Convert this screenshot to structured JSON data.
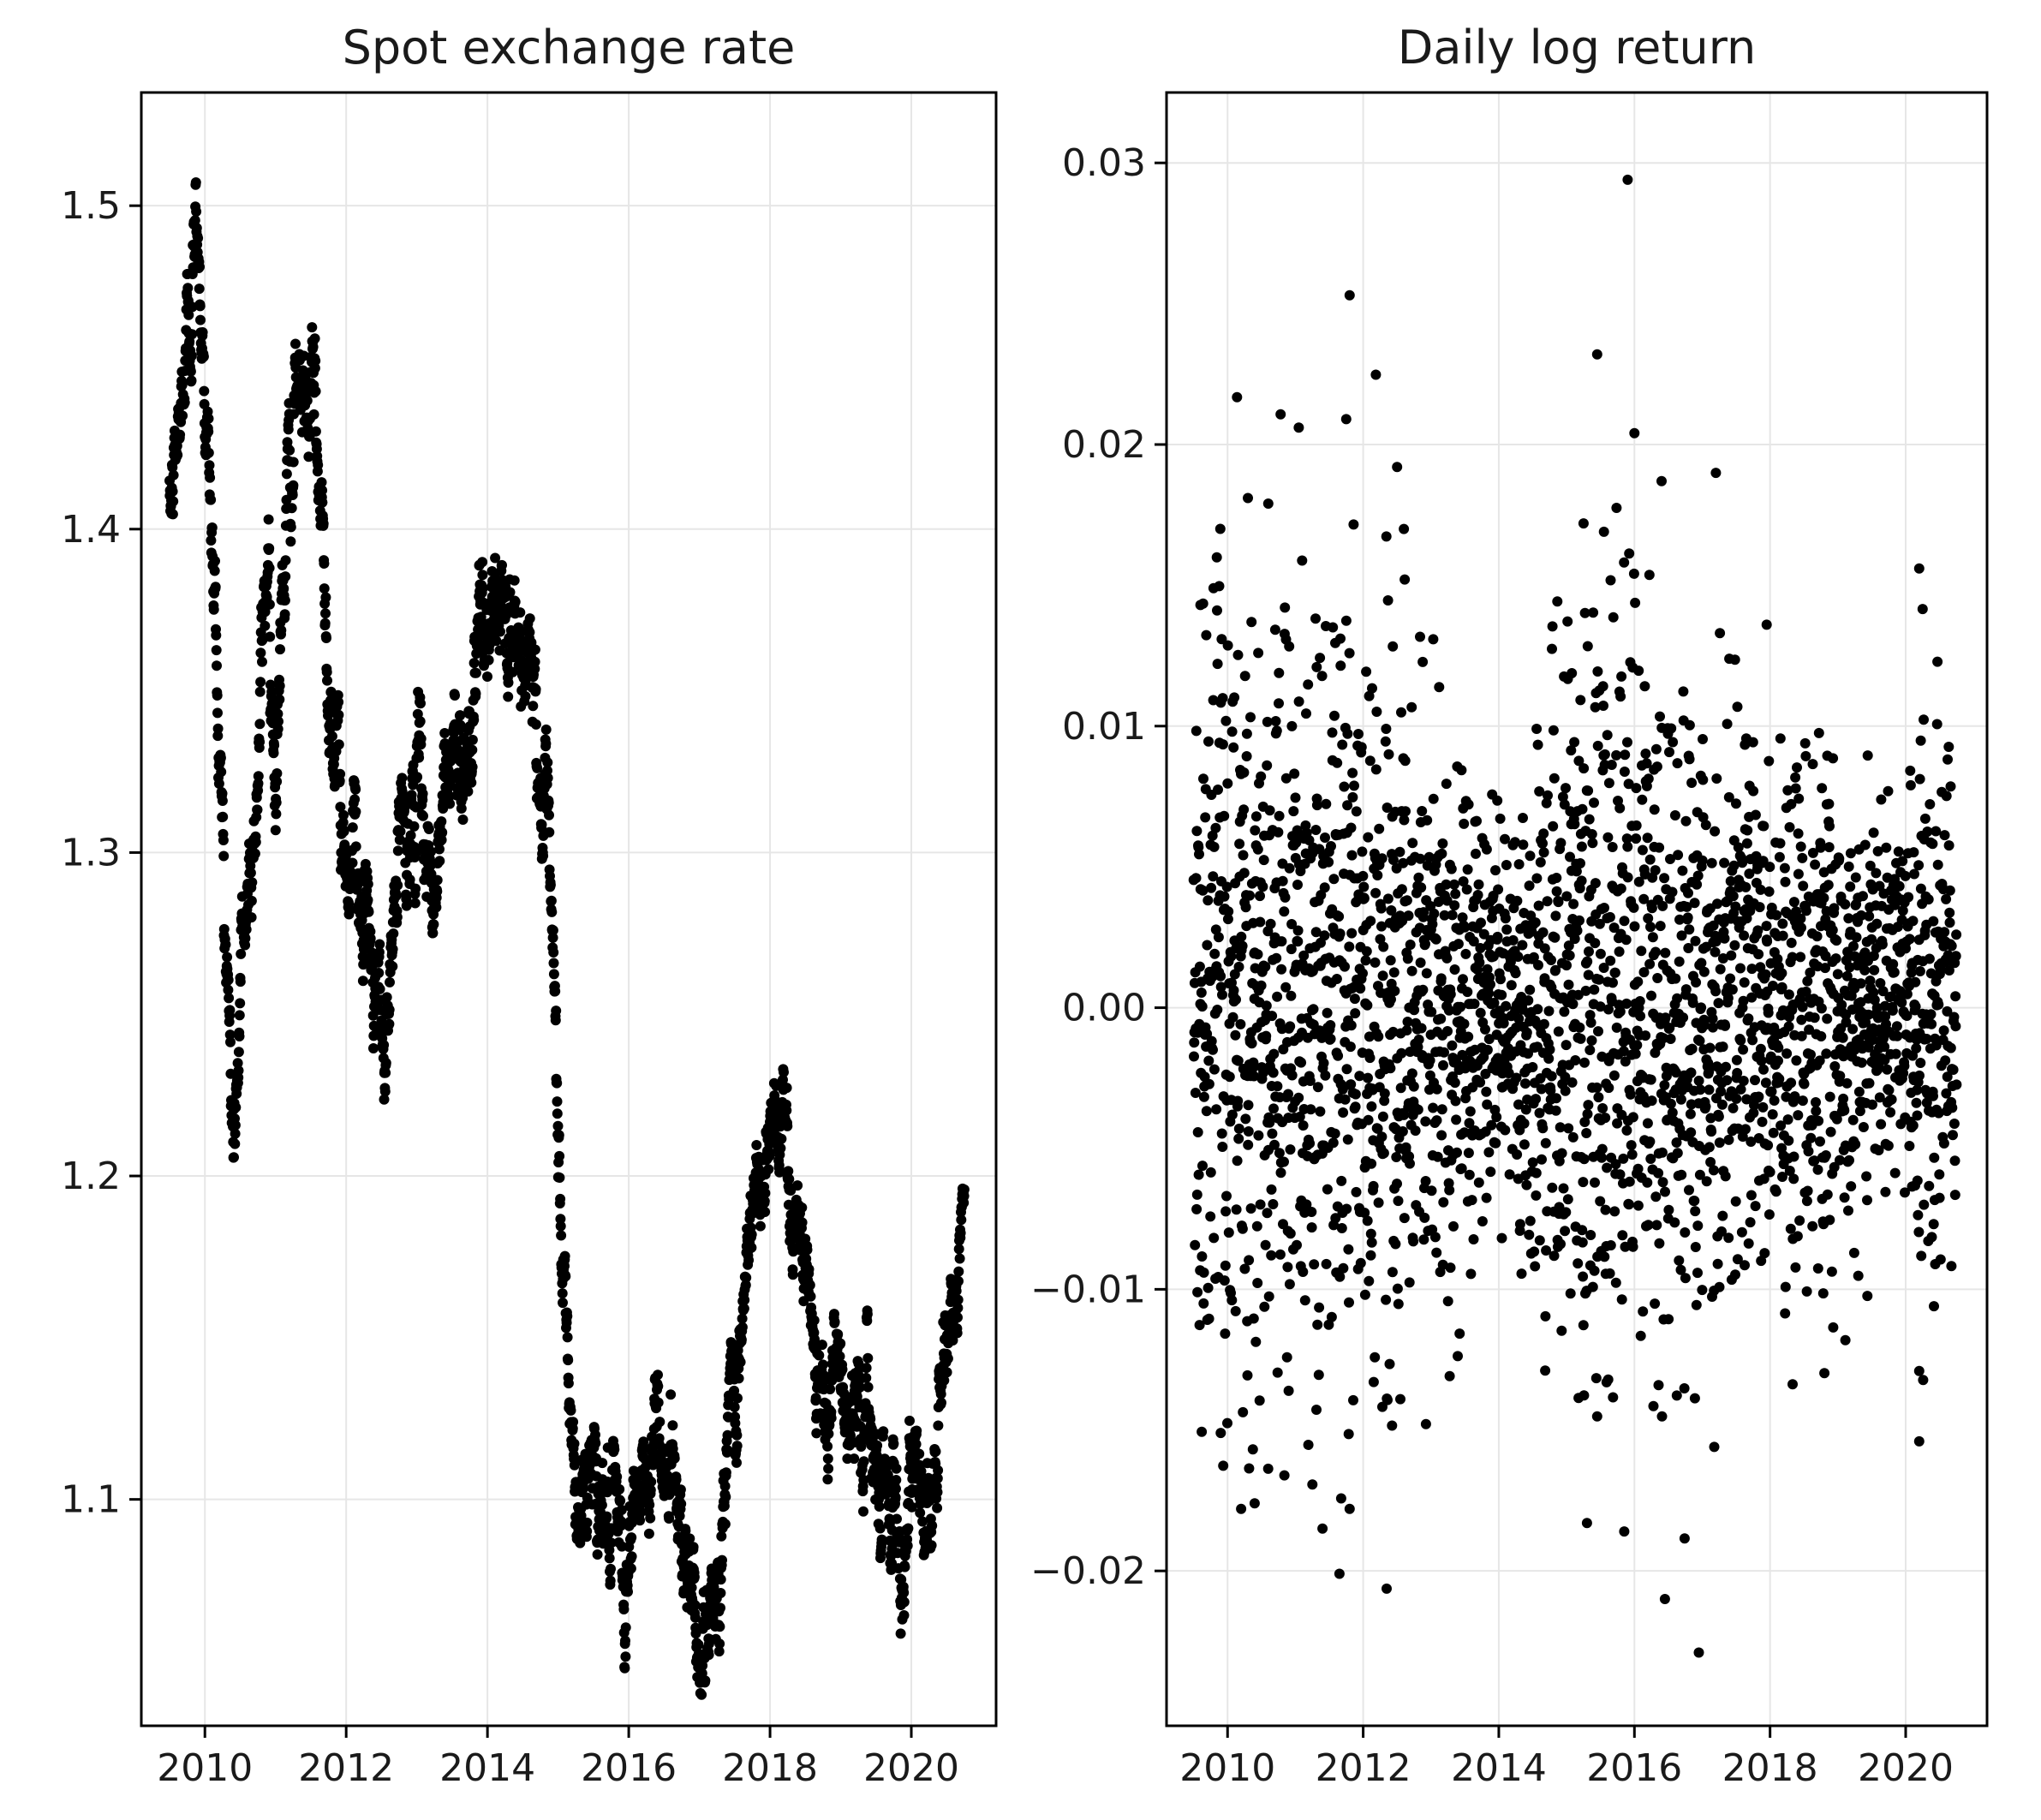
{
  "chart_data": [
    {
      "type": "scatter",
      "title": "Spot exchange rate",
      "xlabel": "",
      "ylabel": "",
      "xlim": [
        2009.1,
        2021.2
      ],
      "ylim": [
        1.03,
        1.535
      ],
      "xticks": [
        2010,
        2012,
        2014,
        2016,
        2018,
        2020
      ],
      "xtick_labels": [
        "2010",
        "2012",
        "2014",
        "2016",
        "2018",
        "2020"
      ],
      "yticks": [
        1.1,
        1.2,
        1.3,
        1.4,
        1.5
      ],
      "ytick_labels": [
        "1.1",
        "1.2",
        "1.3",
        "1.4",
        "1.5"
      ],
      "grid": true,
      "legend": "none",
      "marker_color": "#000000",
      "series": [
        {
          "x_start": 2009.5,
          "x_end": 2020.75,
          "points_per_year": 252,
          "anchors_x": [
            2009.5,
            2009.65,
            2009.9,
            2010.0,
            2010.2,
            2010.4,
            2010.55,
            2010.75,
            2010.9,
            2011.0,
            2011.15,
            2011.3,
            2011.55,
            2011.75,
            2011.95,
            2012.15,
            2012.4,
            2012.55,
            2012.75,
            2013.0,
            2013.25,
            2013.5,
            2013.7,
            2014.0,
            2014.35,
            2014.65,
            2014.85,
            2015.05,
            2015.25,
            2015.5,
            2015.8,
            2015.95,
            2016.2,
            2016.5,
            2016.75,
            2016.95,
            2017.2,
            2017.5,
            2017.75,
            2018.05,
            2018.3,
            2018.6,
            2018.9,
            2019.2,
            2019.5,
            2019.8,
            2020.0,
            2020.2,
            2020.4,
            2020.6,
            2020.75
          ],
          "anchors_y": [
            1.4,
            1.43,
            1.5,
            1.45,
            1.34,
            1.21,
            1.27,
            1.33,
            1.4,
            1.33,
            1.4,
            1.44,
            1.43,
            1.37,
            1.3,
            1.31,
            1.25,
            1.23,
            1.3,
            1.32,
            1.29,
            1.33,
            1.34,
            1.37,
            1.38,
            1.36,
            1.29,
            1.18,
            1.09,
            1.12,
            1.08,
            1.07,
            1.11,
            1.12,
            1.1,
            1.06,
            1.06,
            1.14,
            1.18,
            1.23,
            1.2,
            1.16,
            1.14,
            1.13,
            1.12,
            1.1,
            1.1,
            1.09,
            1.12,
            1.17,
            1.18
          ],
          "noise": 0.012
        }
      ]
    },
    {
      "type": "scatter",
      "title": "Daily log return",
      "xlabel": "",
      "ylabel": "",
      "xlim": [
        2009.1,
        2021.2
      ],
      "ylim": [
        -0.0255,
        0.0325
      ],
      "xticks": [
        2010,
        2012,
        2014,
        2016,
        2018,
        2020
      ],
      "xtick_labels": [
        "2010",
        "2012",
        "2014",
        "2016",
        "2018",
        "2020"
      ],
      "yticks": [
        -0.02,
        -0.01,
        0.0,
        0.01,
        0.02,
        0.03
      ],
      "ytick_labels": [
        "−0.02",
        "−0.01",
        "0.00",
        "0.01",
        "0.02",
        "0.03"
      ],
      "grid": true,
      "legend": "none",
      "marker_color": "#000000",
      "series": [
        {
          "x_start": 2009.5,
          "x_end": 2020.75,
          "points_per_year": 252,
          "volatility_x": [
            2009.5,
            2010.0,
            2010.5,
            2011.0,
            2011.5,
            2012.0,
            2012.5,
            2013.0,
            2013.5,
            2014.0,
            2014.5,
            2015.0,
            2015.5,
            2016.0,
            2016.5,
            2017.0,
            2017.5,
            2018.0,
            2018.5,
            2019.0,
            2019.5,
            2020.0,
            2020.25,
            2020.5,
            2020.75
          ],
          "volatility_y": [
            0.0075,
            0.0072,
            0.0068,
            0.0068,
            0.0068,
            0.0066,
            0.006,
            0.005,
            0.0042,
            0.0032,
            0.004,
            0.0068,
            0.0072,
            0.0066,
            0.006,
            0.0052,
            0.0048,
            0.0045,
            0.0043,
            0.0038,
            0.0034,
            0.0033,
            0.0062,
            0.0045,
            0.004
          ],
          "outliers": [
            {
              "x": 2011.8,
              "y": 0.0253
            },
            {
              "x": 2011.75,
              "y": 0.0209
            },
            {
              "x": 2011.05,
              "y": 0.0206
            },
            {
              "x": 2012.5,
              "y": 0.0192
            },
            {
              "x": 2010.3,
              "y": 0.0181
            },
            {
              "x": 2010.6,
              "y": 0.0179
            },
            {
              "x": 2012.6,
              "y": 0.017
            },
            {
              "x": 2015.9,
              "y": 0.0294
            },
            {
              "x": 2015.45,
              "y": 0.0232
            },
            {
              "x": 2016.0,
              "y": 0.0204
            },
            {
              "x": 2016.4,
              "y": 0.0187
            },
            {
              "x": 2015.25,
              "y": 0.0172
            },
            {
              "x": 2015.55,
              "y": 0.0169
            },
            {
              "x": 2020.2,
              "y": 0.0156
            },
            {
              "x": 2017.95,
              "y": 0.0136
            },
            {
              "x": 2009.6,
              "y": 0.0143
            },
            {
              "x": 2009.9,
              "y": -0.0151
            },
            {
              "x": 2010.2,
              "y": -0.0178
            },
            {
              "x": 2010.4,
              "y": -0.0176
            },
            {
              "x": 2011.4,
              "y": -0.0185
            },
            {
              "x": 2011.65,
              "y": -0.0201
            },
            {
              "x": 2011.8,
              "y": -0.0178
            },
            {
              "x": 2015.3,
              "y": -0.0183
            },
            {
              "x": 2015.85,
              "y": -0.0186
            },
            {
              "x": 2016.45,
              "y": -0.021
            },
            {
              "x": 2016.95,
              "y": -0.0229
            },
            {
              "x": 2020.2,
              "y": -0.0154
            },
            {
              "x": 2020.2,
              "y": -0.0129
            }
          ]
        }
      ]
    }
  ]
}
